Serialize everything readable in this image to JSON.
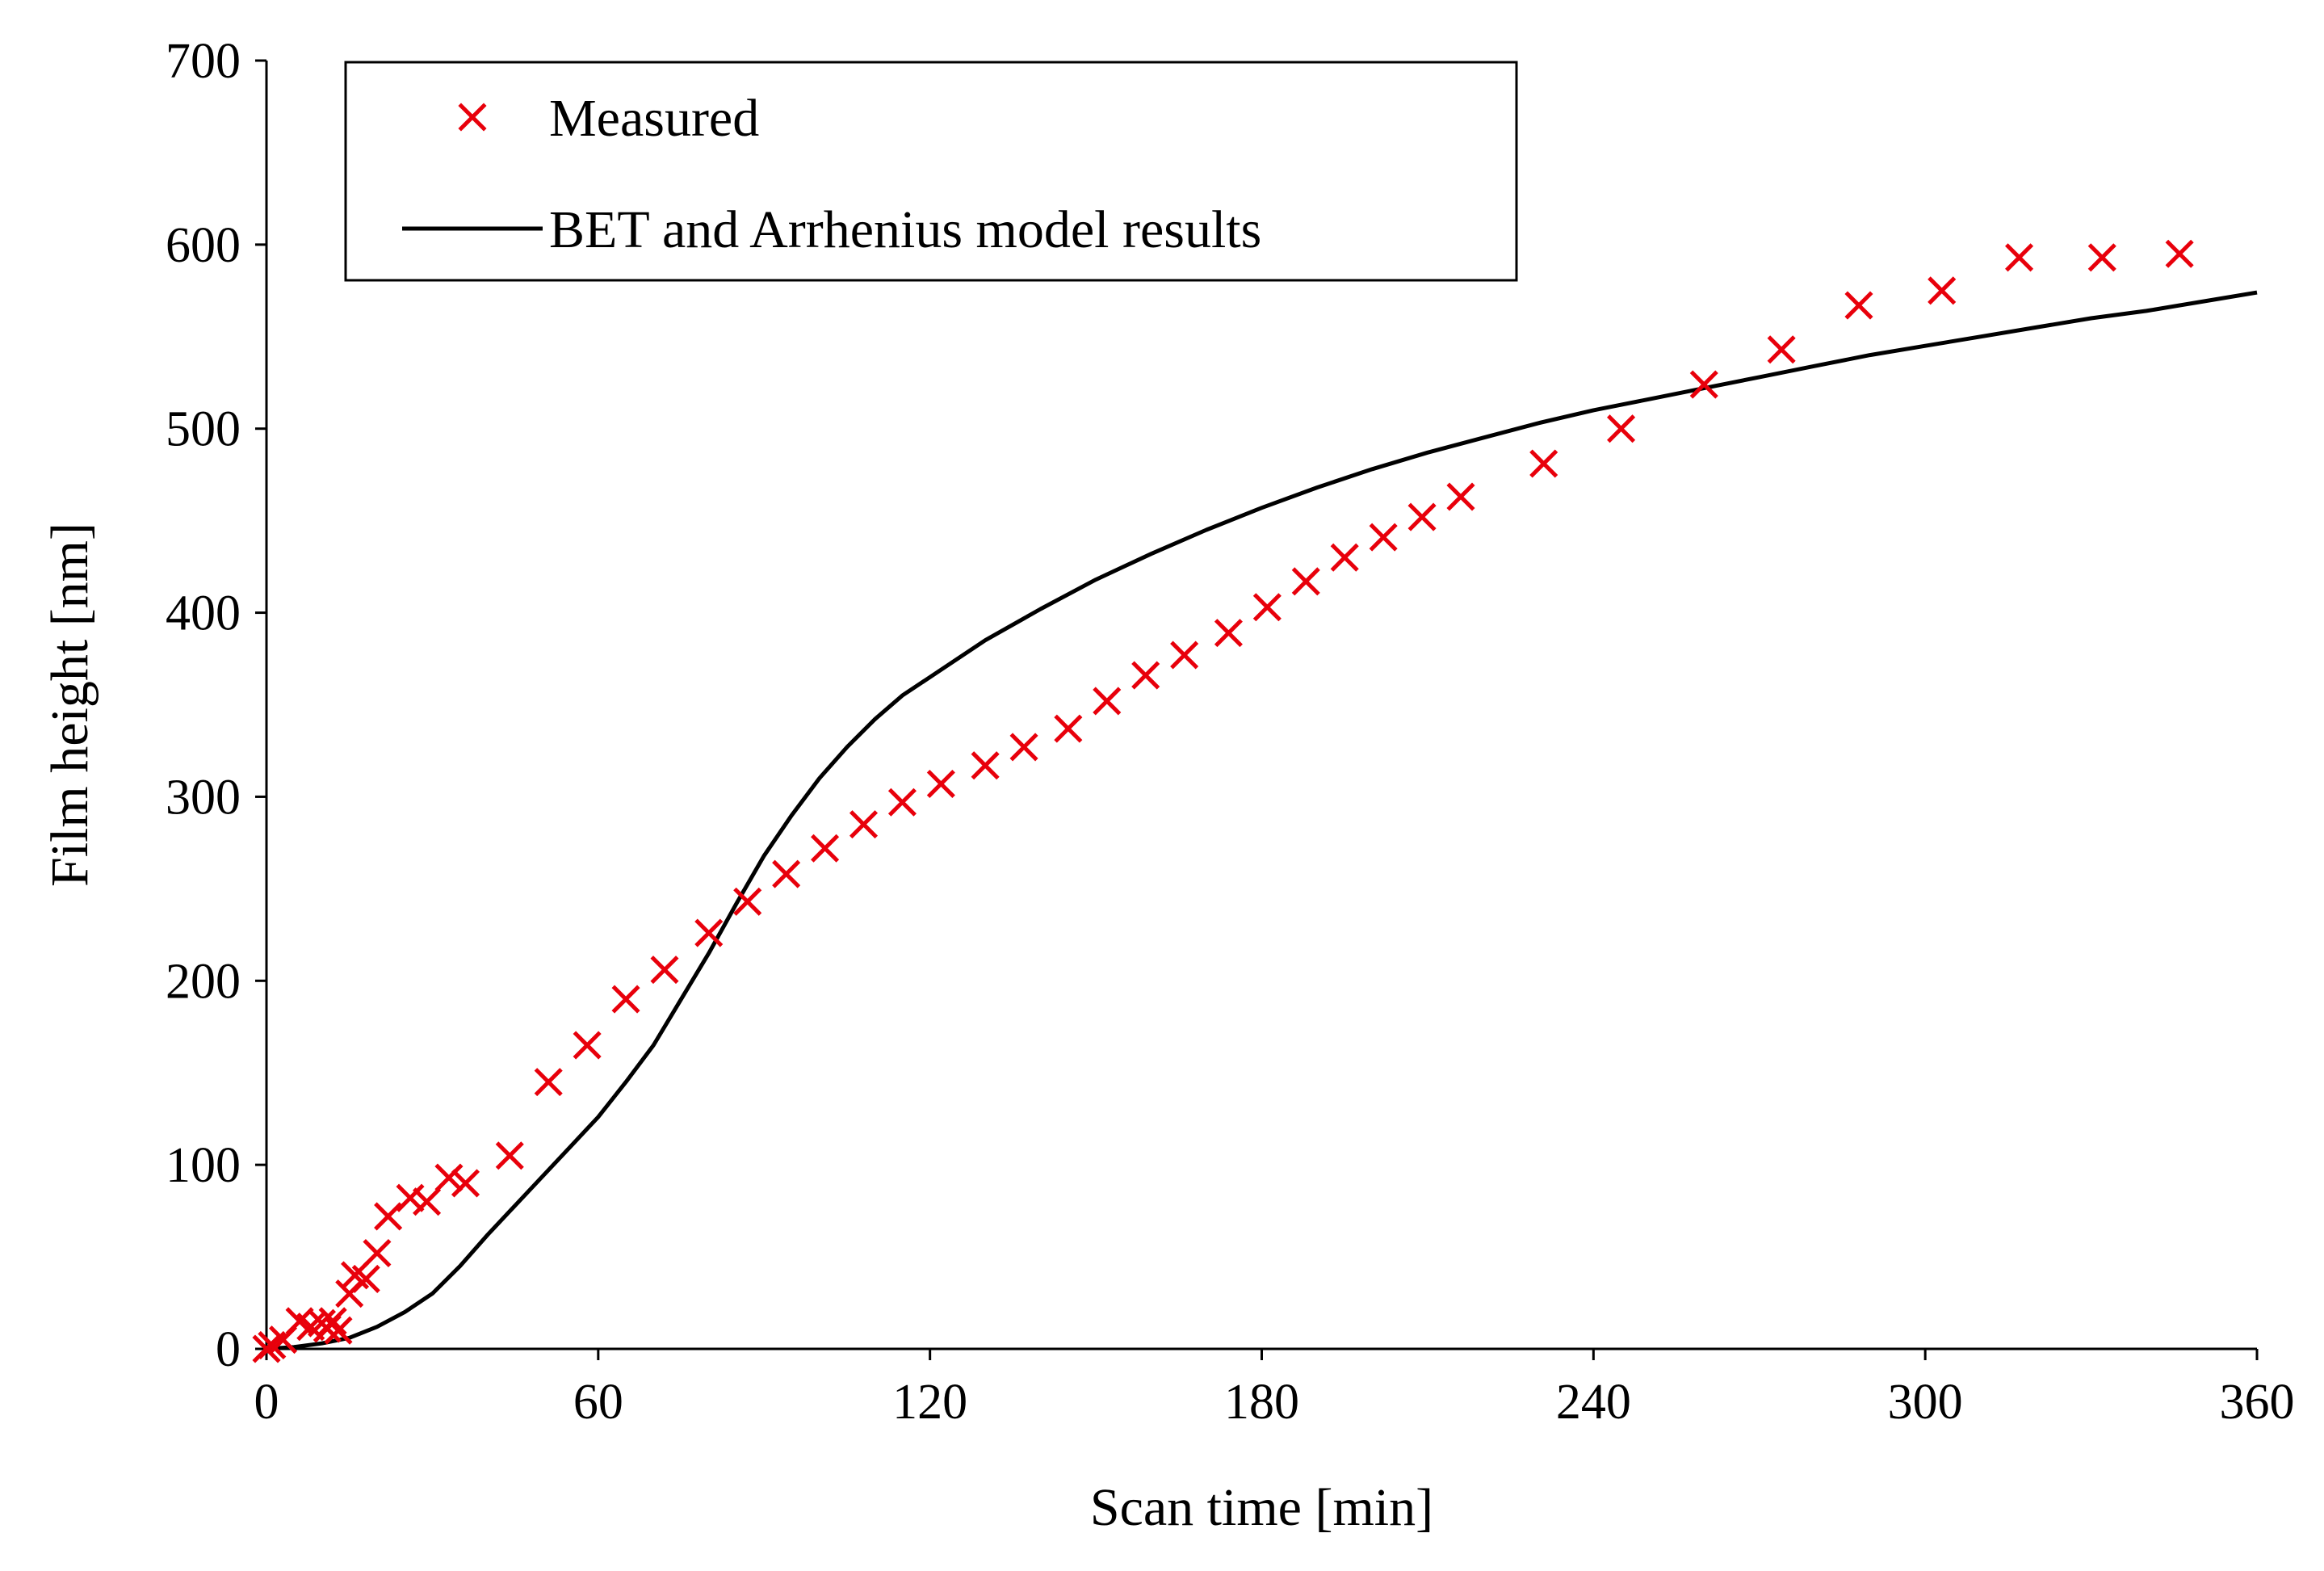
{
  "chart_data": {
    "type": "scatter",
    "title": "",
    "xlabel": "Scan time [min]",
    "ylabel": "Film height [nm]",
    "xlim": [
      0,
      360
    ],
    "ylim": [
      0,
      700
    ],
    "xticks": [
      0,
      60,
      120,
      180,
      240,
      300,
      360
    ],
    "yticks": [
      0,
      100,
      200,
      300,
      400,
      500,
      600,
      700
    ],
    "grid": false,
    "legend_position": "top-left",
    "series": [
      {
        "name": "Measured",
        "kind": "markers",
        "marker": "x",
        "color": "#e8000b",
        "x": [
          0,
          1,
          3,
          6,
          8,
          10,
          11,
          12,
          13,
          15,
          16,
          18,
          20,
          22,
          26,
          29,
          33,
          36,
          44,
          51,
          58,
          65,
          72,
          80,
          87,
          94,
          101,
          108,
          115,
          122,
          130,
          137,
          145,
          152,
          159,
          166,
          174,
          181,
          188,
          195,
          202,
          209,
          216,
          231,
          245,
          260,
          274,
          288,
          303,
          317,
          332,
          346
        ],
        "y": [
          0,
          2,
          5,
          15,
          12,
          14,
          11,
          15,
          10,
          30,
          40,
          38,
          52,
          72,
          82,
          80,
          93,
          90,
          105,
          145,
          165,
          190,
          206,
          226,
          243,
          258,
          272,
          285,
          297,
          307,
          317,
          327,
          337,
          352,
          366,
          377,
          389,
          403,
          417,
          430,
          441,
          452,
          463,
          481,
          500,
          524,
          543,
          567,
          575,
          593,
          593,
          595
        ]
      },
      {
        "name": "BET and Arrhenius model results",
        "kind": "line",
        "color": "#000000",
        "x": [
          0,
          5,
          10,
          15,
          20,
          25,
          30,
          35,
          40,
          45,
          50,
          55,
          60,
          65,
          70,
          75,
          80,
          85,
          90,
          95,
          100,
          105,
          110,
          115,
          120,
          130,
          140,
          150,
          160,
          170,
          180,
          190,
          200,
          210,
          220,
          230,
          240,
          250,
          260,
          270,
          280,
          290,
          300,
          310,
          320,
          330,
          340,
          350,
          360
        ],
        "y": [
          0,
          1,
          3,
          6,
          12,
          20,
          30,
          45,
          62,
          78,
          94,
          110,
          126,
          145,
          165,
          190,
          215,
          242,
          268,
          290,
          310,
          327,
          342,
          355,
          365,
          385,
          402,
          418,
          432,
          445,
          457,
          468,
          478,
          487,
          495,
          503,
          510,
          516,
          522,
          528,
          534,
          540,
          545,
          550,
          555,
          560,
          564,
          569,
          574
        ]
      }
    ]
  }
}
